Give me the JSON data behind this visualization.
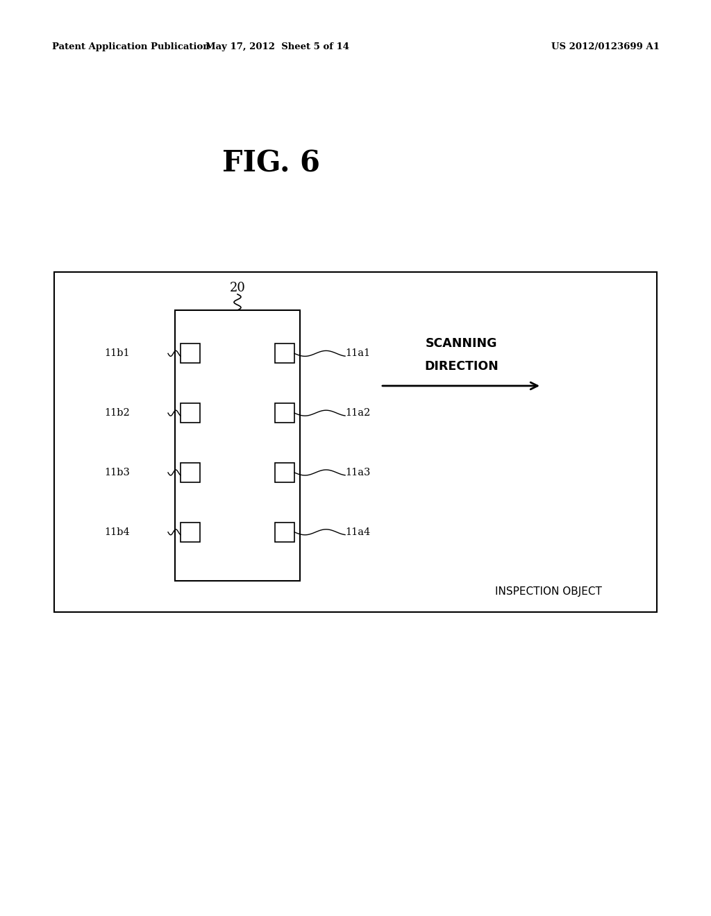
{
  "bg_color": "#ffffff",
  "header_left": "Patent Application Publication",
  "header_center": "May 17, 2012  Sheet 5 of 14",
  "header_right": "US 2012/0123699 A1",
  "fig_title": "FIG. 6",
  "label_20": "20",
  "inspection_text": "INSPECTION OBJECT",
  "scanning_line1": "SCANNING",
  "scanning_line2": "DIRECTION",
  "right_labels": [
    "11a1",
    "11a2",
    "11a3",
    "11a4"
  ],
  "left_labels": [
    "11b1",
    "11b2",
    "11b3",
    "11b4"
  ]
}
